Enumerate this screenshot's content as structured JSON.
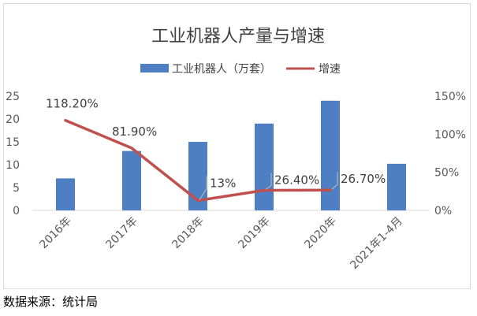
{
  "chart_data": {
    "type": "bar",
    "title": "工业机器人产量与增速",
    "categories": [
      "2016年",
      "2017年",
      "2018年",
      "2019年",
      "2020年",
      "2021年1-4月"
    ],
    "series": [
      {
        "name": "工业机器人（万套）",
        "kind": "bar",
        "axis": "left",
        "color": "#4e7fc2",
        "values": [
          7,
          13,
          15,
          19,
          24,
          10.2
        ]
      },
      {
        "name": "增速",
        "kind": "line",
        "axis": "right",
        "color": "#c0504d",
        "values": [
          118.2,
          81.9,
          13,
          26.4,
          26.7,
          null
        ]
      }
    ],
    "data_labels": [
      "118.20%",
      "81.90%",
      "13%",
      "26.40%",
      "26.70%"
    ],
    "y_left": {
      "ylim": [
        0,
        25
      ],
      "ticks": [
        "0",
        "5",
        "10",
        "15",
        "20",
        "25"
      ]
    },
    "y_right": {
      "ylim": [
        0,
        150
      ],
      "ticks": [
        "0%",
        "50%",
        "100%",
        "150%"
      ]
    },
    "legend_position": "top",
    "grid": false
  },
  "source_note": "数据来源：统计局"
}
